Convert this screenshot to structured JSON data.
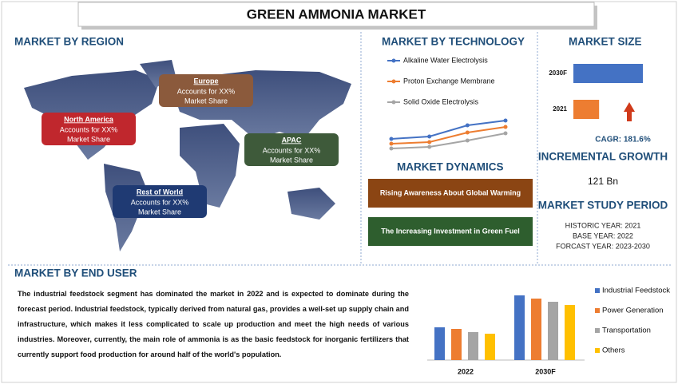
{
  "header": {
    "title": "GREEN AMMONIA MARKET"
  },
  "region": {
    "heading": "MARKET BY REGION",
    "regions": [
      {
        "name": "North America",
        "lines": [
          "Accounts for XX%",
          "Market Share"
        ]
      },
      {
        "name": "Europe",
        "lines": [
          "Accounts for XX%",
          "Market Share"
        ]
      },
      {
        "name": "APAC",
        "lines": [
          "Accounts for XX%",
          "Market Share"
        ]
      },
      {
        "name": "Rest of World",
        "lines": [
          "Accounts for XX%",
          "Market Share"
        ]
      }
    ]
  },
  "technology": {
    "heading": "MARKET BY TECHNOLOGY",
    "chart_data": {
      "type": "line",
      "categories": [
        null,
        null,
        null,
        null
      ],
      "ylim": [
        0,
        40
      ],
      "series": [
        {
          "name": "Alkaline Water Electrolysis",
          "color": "#4472c4",
          "values": [
            16,
            19,
            33,
            39
          ]
        },
        {
          "name": "Proton Exchange Membrane",
          "color": "#ed7d31",
          "values": [
            10,
            12,
            24,
            31
          ]
        },
        {
          "name": "Solid Oxide Electrolysis",
          "color": "#a5a5a5",
          "values": [
            4,
            6,
            14,
            23
          ]
        }
      ]
    }
  },
  "dynamics": {
    "heading": "MARKET DYNAMICS",
    "items": [
      "Rising Awareness About Global Warming",
      "The Increasing Investment in Green Fuel"
    ]
  },
  "market_size": {
    "heading": "MARKET SIZE",
    "chart_data": {
      "type": "bar",
      "orientation": "horizontal",
      "categories": [
        "2030F",
        "2021"
      ],
      "values": [
        100,
        37
      ],
      "colors": [
        "#4472c4",
        "#ed7d31"
      ],
      "xlim": [
        0,
        100
      ]
    },
    "cagr": "CAGR:  181.6%"
  },
  "incremental": {
    "heading": "INCREMENTAL GROWTH",
    "value": "121 Bn"
  },
  "study": {
    "heading": "MARKET STUDY PERIOD",
    "lines": [
      "HISTORIC YEAR: 2021",
      "BASE YEAR: 2022",
      "FORCAST YEAR: 2023-2030"
    ]
  },
  "end_user": {
    "heading": "MARKET BY END USER",
    "text": "The industrial feedstock segment has dominated the market in 2022 and is expected to dominate during the forecast period. Industrial feedstock, typically derived from natural gas, provides a well-set up supply chain and infrastructure, which makes it less complicated to scale up production and meet the high needs of various industries. Moreover, currently, the main role of ammonia is as the basic feedstock for inorganic fertilizers that currently support food production for around half of the world's population.",
    "chart_data": {
      "type": "bar",
      "categories": [
        "2022",
        "2030F"
      ],
      "ylim": [
        0,
        90
      ],
      "series": [
        {
          "name": "Industrial Feedstock",
          "color": "#4472c4",
          "values": [
            41,
            81
          ]
        },
        {
          "name": "Power Generation",
          "color": "#ed7d31",
          "values": [
            39,
            77
          ]
        },
        {
          "name": "Transportation",
          "color": "#a5a5a5",
          "values": [
            35,
            73
          ]
        },
        {
          "name": "Others",
          "color": "#ffc000",
          "values": [
            33,
            69
          ]
        }
      ]
    }
  }
}
